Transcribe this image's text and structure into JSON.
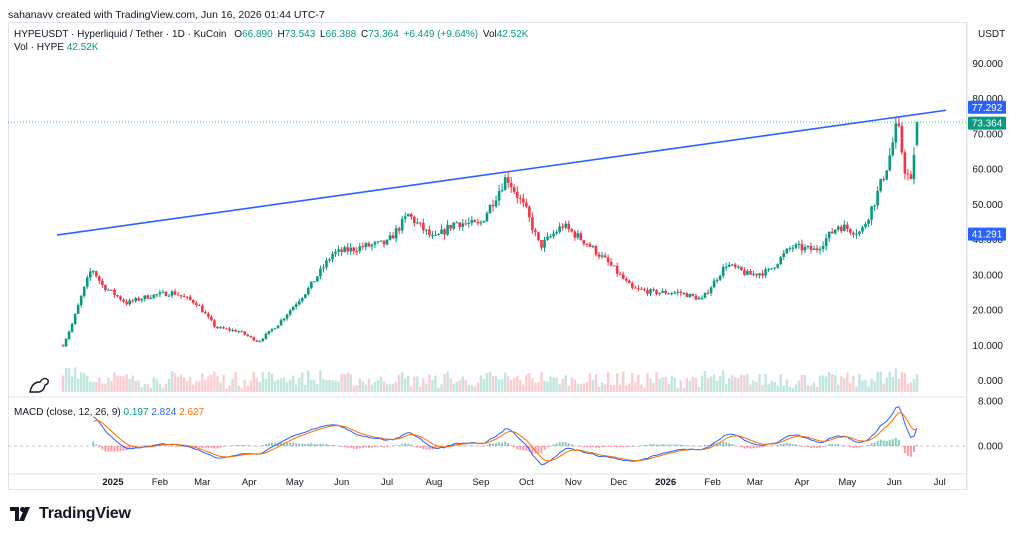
{
  "credit": "sahanavv created with TradingView.com, Jun 16, 2026 01:44 UTC-7",
  "legend": {
    "symbol": "HYPEUSDT · Hyperliquid / Tether · 1D · KuCoin",
    "o_label": "O",
    "o": "66.890",
    "h_label": "H",
    "h": "73.543",
    "l_label": "L",
    "l": "66.388",
    "c_label": "C",
    "c": "73.364",
    "change": "+6.449 (+9.64%)",
    "vol_label": "Vol",
    "vol": "42.52K",
    "vol_line_label": "Vol · HYPE",
    "vol_line_value": "42.52K"
  },
  "macd_legend": {
    "label": "MACD (close, 12, 26, 9)",
    "v1": "0.197",
    "v2": "2.824",
    "v3": "2.627"
  },
  "currency": "USDT",
  "price_ticks": [
    "90.000",
    "80.000",
    "70.000",
    "60.000",
    "50.000",
    "40.000",
    "30.000",
    "20.000",
    "10.000",
    "0.000"
  ],
  "macd_ticks": [
    "8.000",
    "0.000"
  ],
  "time_labels": [
    "2025",
    "Feb",
    "Mar",
    "Apr",
    "May",
    "Jun",
    "Jul",
    "Aug",
    "Sep",
    "Oct",
    "Nov",
    "Dec",
    "2026",
    "Feb",
    "Mar",
    "Apr",
    "May",
    "Jun",
    "Jul"
  ],
  "badges": {
    "upper": "77.292",
    "last": "73.364",
    "lower": "41.291"
  },
  "colors": {
    "up": "#089981",
    "down": "#f23645",
    "trendline": "#2962ff",
    "macd": "#2962ff",
    "signal": "#ff6d00"
  },
  "brand": "TradingView",
  "chart_data": {
    "type": "candlestick",
    "title": "HYPEUSDT · Hyperliquid / Tether · 1D · KuCoin",
    "x_range": [
      "2024-11-29",
      "2026-06-16"
    ],
    "y_range": [
      0,
      95
    ],
    "price_path_approx": [
      {
        "date": "2024-11-29",
        "close": 10
      },
      {
        "date": "2024-12-05",
        "close": 16
      },
      {
        "date": "2024-12-12",
        "close": 25
      },
      {
        "date": "2024-12-18",
        "close": 32
      },
      {
        "date": "2024-12-25",
        "close": 27
      },
      {
        "date": "2025-01-10",
        "close": 22
      },
      {
        "date": "2025-01-25",
        "close": 24
      },
      {
        "date": "2025-02-10",
        "close": 25
      },
      {
        "date": "2025-02-25",
        "close": 22
      },
      {
        "date": "2025-03-10",
        "close": 15
      },
      {
        "date": "2025-03-25",
        "close": 14
      },
      {
        "date": "2025-04-07",
        "close": 11
      },
      {
        "date": "2025-04-20",
        "close": 16
      },
      {
        "date": "2025-05-10",
        "close": 26
      },
      {
        "date": "2025-05-26",
        "close": 36
      },
      {
        "date": "2025-06-15",
        "close": 38
      },
      {
        "date": "2025-07-01",
        "close": 39
      },
      {
        "date": "2025-07-15",
        "close": 47
      },
      {
        "date": "2025-08-01",
        "close": 40
      },
      {
        "date": "2025-08-15",
        "close": 45
      },
      {
        "date": "2025-08-31",
        "close": 44
      },
      {
        "date": "2025-09-18",
        "close": 58
      },
      {
        "date": "2025-10-01",
        "close": 48
      },
      {
        "date": "2025-10-10",
        "close": 38
      },
      {
        "date": "2025-10-25",
        "close": 44
      },
      {
        "date": "2025-11-10",
        "close": 39
      },
      {
        "date": "2025-11-25",
        "close": 33
      },
      {
        "date": "2025-12-10",
        "close": 26
      },
      {
        "date": "2025-12-25",
        "close": 25
      },
      {
        "date": "2026-01-10",
        "close": 25
      },
      {
        "date": "2026-01-25",
        "close": 23
      },
      {
        "date": "2026-02-10",
        "close": 33
      },
      {
        "date": "2026-02-25",
        "close": 30
      },
      {
        "date": "2026-03-10",
        "close": 31
      },
      {
        "date": "2026-03-25",
        "close": 38
      },
      {
        "date": "2026-04-10",
        "close": 37
      },
      {
        "date": "2026-04-25",
        "close": 44
      },
      {
        "date": "2026-05-10",
        "close": 42
      },
      {
        "date": "2026-05-20",
        "close": 52
      },
      {
        "date": "2026-05-28",
        "close": 62
      },
      {
        "date": "2026-06-03",
        "close": 73
      },
      {
        "date": "2026-06-08",
        "close": 60
      },
      {
        "date": "2026-06-12",
        "close": 56
      },
      {
        "date": "2026-06-16",
        "close": 73.364
      }
    ],
    "last": {
      "open": 66.89,
      "high": 73.543,
      "low": 66.388,
      "close": 73.364,
      "change": 6.449,
      "change_pct": 9.64,
      "volume": "42.52K"
    },
    "trendline": {
      "start": {
        "date": "2024-11-29",
        "price": 41.291
      },
      "end": {
        "date": "2026-06-16",
        "price": 77.292
      }
    },
    "macd": {
      "params": [
        12,
        26,
        9
      ],
      "values": {
        "histogram": 0.197,
        "macd": 2.824,
        "signal": 2.627
      },
      "y_range": [
        -3,
        9
      ]
    }
  }
}
